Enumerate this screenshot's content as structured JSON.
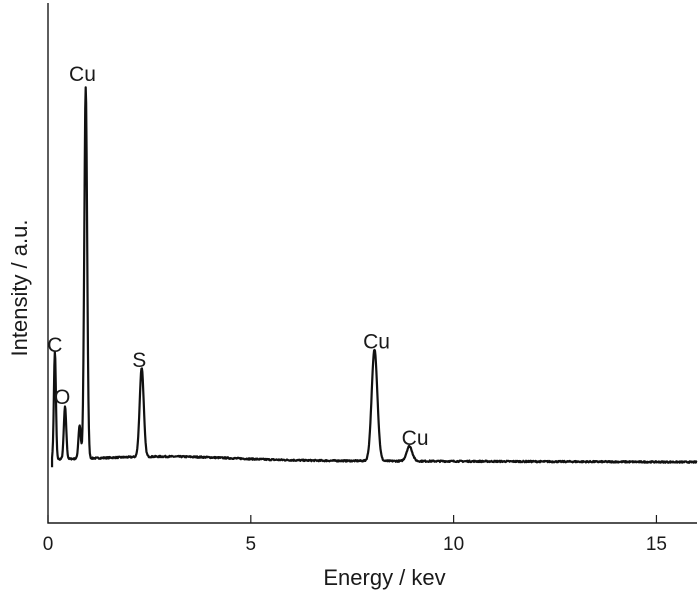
{
  "chart_data": {
    "type": "line",
    "title": "",
    "xlabel": "Energy / kev",
    "ylabel": "Intensity / a.u.",
    "xlim": [
      0,
      16
    ],
    "ylim": [
      -0.15,
      1.25
    ],
    "xticks": [
      0,
      5,
      10,
      15
    ],
    "y_tick_labels_shown": false,
    "grid": false,
    "line_color": "#111111",
    "baseline": 0.02,
    "peaks": [
      {
        "label": "C",
        "energy": 0.17,
        "intensity": 0.29,
        "width": 0.025
      },
      {
        "label": "O",
        "energy": 0.42,
        "intensity": 0.14,
        "width": 0.03
      },
      {
        "label": "",
        "energy": 0.78,
        "intensity": 0.09,
        "width": 0.03
      },
      {
        "label": "Cu",
        "energy": 0.93,
        "intensity": 1.0,
        "width": 0.035
      },
      {
        "label": "S",
        "energy": 2.31,
        "intensity": 0.24,
        "width": 0.05
      },
      {
        "label": "Cu",
        "energy": 8.05,
        "intensity": 0.3,
        "width": 0.07
      },
      {
        "label": "Cu",
        "energy": 8.91,
        "intensity": 0.04,
        "width": 0.07
      }
    ],
    "annotations": [
      {
        "text": "C",
        "x": 0.17,
        "y": 0.31
      },
      {
        "text": "O",
        "x": 0.35,
        "y": 0.17
      },
      {
        "text": "Cu",
        "x": 0.85,
        "y": 1.04
      },
      {
        "text": "S",
        "x": 2.25,
        "y": 0.27
      },
      {
        "text": "Cu",
        "x": 8.1,
        "y": 0.32
      },
      {
        "text": "Cu",
        "x": 9.05,
        "y": 0.06
      }
    ]
  }
}
